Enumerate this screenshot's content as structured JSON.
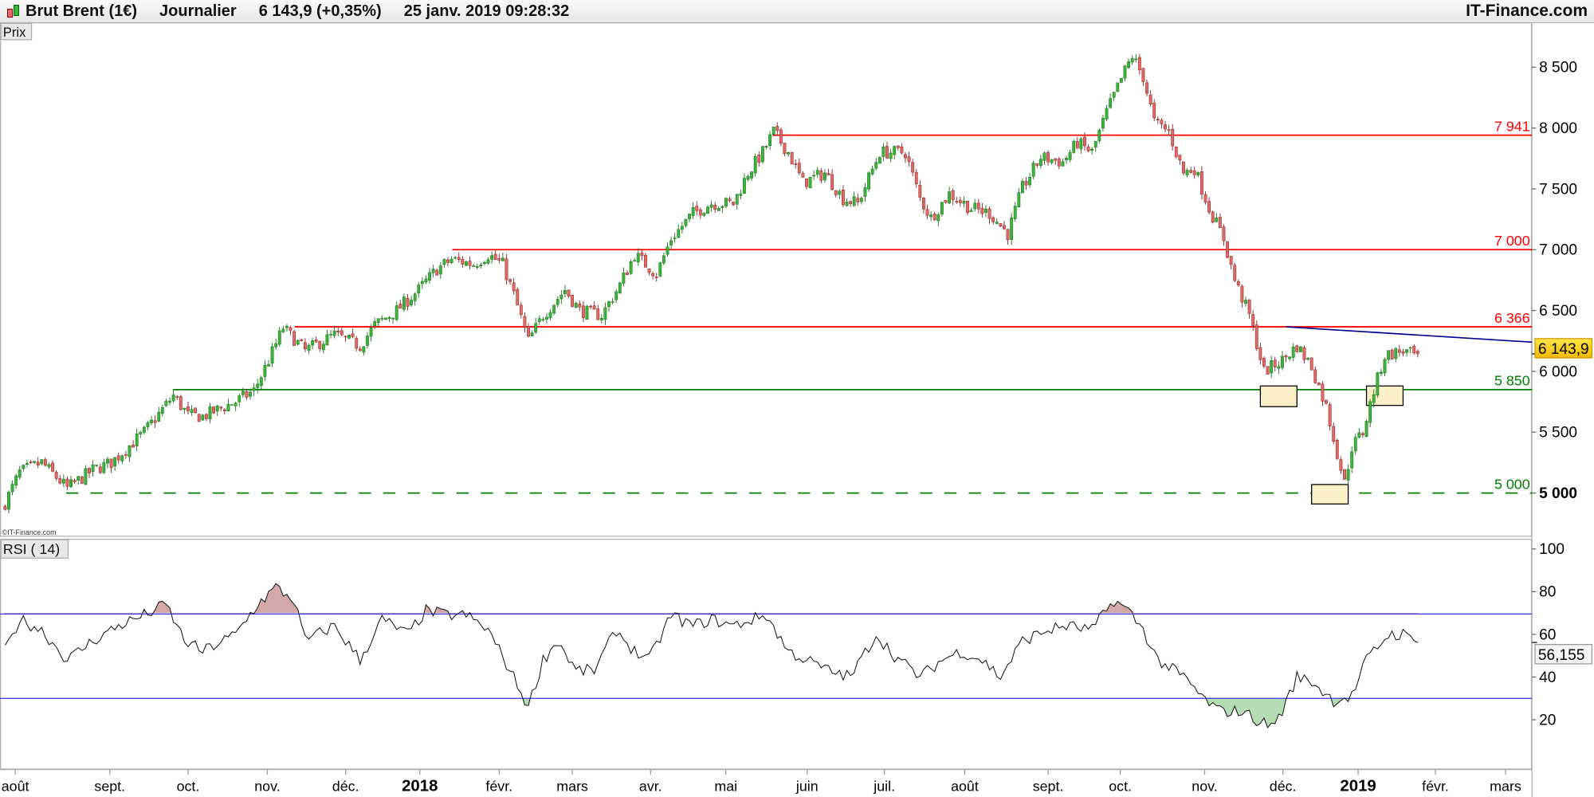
{
  "header": {
    "instrument": "Brut Brent (1€)",
    "period": "Journalier",
    "last_quote": "6 143,9 (+0,35%)",
    "datetime": "25 janv. 2019 09:28:32",
    "brand": "IT-Finance.com"
  },
  "price_panel": {
    "label": "Prix",
    "copyright": "©IT-Finance.com",
    "current_price_label": "6 143,9"
  },
  "rsi_panel": {
    "label": "RSI ( 14)",
    "current_value_label": "56,155"
  },
  "colors": {
    "up": "#3cb43c",
    "down": "#e06a6a",
    "resistance": "#ff0000",
    "support": "#008000",
    "trendline": "#000090",
    "rsi_bands": "#3333dd",
    "overbought_fill": "#d2a8a8",
    "oversold_fill": "#b5dcb5",
    "price_badge": "#ffd700"
  },
  "chart_data": [
    {
      "type": "candlestick",
      "title": "Brut Brent (1€) Journalier",
      "ylabel": "Prix",
      "ylim": [
        4750,
        8800
      ],
      "y_ticks": [
        "5 000",
        "5 500",
        "6 000",
        "6 500",
        "7 000",
        "7 500",
        "8 000",
        "8 500"
      ],
      "y_tick_values": [
        5000,
        5500,
        6000,
        6500,
        7000,
        7500,
        8000,
        8500
      ],
      "x_tick_labels": [
        "août",
        "sept.",
        "oct.",
        "nov.",
        "déc.",
        "2018",
        "févr.",
        "mars",
        "avr.",
        "mai",
        "juin",
        "juil.",
        "août",
        "sept.",
        "oct.",
        "nov.",
        "déc.",
        "2019",
        "févr.",
        "mars"
      ],
      "close_keypoints_by_trading_day": [
        [
          0,
          4920
        ],
        [
          4,
          5170
        ],
        [
          10,
          5250
        ],
        [
          17,
          5040
        ],
        [
          24,
          5190
        ],
        [
          29,
          5250
        ],
        [
          38,
          5500
        ],
        [
          46,
          5800
        ],
        [
          50,
          5640
        ],
        [
          54,
          5630
        ],
        [
          63,
          5750
        ],
        [
          68,
          5840
        ],
        [
          72,
          6090
        ],
        [
          76,
          6360
        ],
        [
          82,
          6170
        ],
        [
          90,
          6300
        ],
        [
          97,
          6210
        ],
        [
          101,
          6380
        ],
        [
          107,
          6500
        ],
        [
          113,
          6670
        ],
        [
          118,
          6840
        ],
        [
          122,
          6920
        ],
        [
          128,
          6880
        ],
        [
          132,
          6960
        ],
        [
          136,
          6880
        ],
        [
          139,
          6630
        ],
        [
          143,
          6250
        ],
        [
          147,
          6460
        ],
        [
          153,
          6670
        ],
        [
          157,
          6500
        ],
        [
          163,
          6460
        ],
        [
          168,
          6710
        ],
        [
          172,
          6960
        ],
        [
          178,
          6800
        ],
        [
          182,
          7090
        ],
        [
          188,
          7300
        ],
        [
          193,
          7380
        ],
        [
          199,
          7380
        ],
        [
          203,
          7630
        ],
        [
          207,
          7800
        ],
        [
          210,
          7970
        ],
        [
          214,
          7800
        ],
        [
          218,
          7550
        ],
        [
          224,
          7630
        ],
        [
          229,
          7420
        ],
        [
          233,
          7380
        ],
        [
          239,
          7800
        ],
        [
          246,
          7800
        ],
        [
          250,
          7420
        ],
        [
          253,
          7260
        ],
        [
          258,
          7460
        ],
        [
          264,
          7340
        ],
        [
          269,
          7300
        ],
        [
          274,
          7130
        ],
        [
          278,
          7510
        ],
        [
          283,
          7760
        ],
        [
          289,
          7720
        ],
        [
          293,
          7880
        ],
        [
          297,
          7800
        ],
        [
          301,
          8130
        ],
        [
          306,
          8470
        ],
        [
          308,
          8590
        ],
        [
          311,
          8420
        ],
        [
          314,
          8050
        ],
        [
          318,
          7970
        ],
        [
          322,
          7630
        ],
        [
          325,
          7670
        ],
        [
          329,
          7340
        ],
        [
          333,
          7090
        ],
        [
          336,
          6750
        ],
        [
          340,
          6460
        ],
        [
          344,
          6000
        ],
        [
          349,
          6090
        ],
        [
          353,
          6210
        ],
        [
          357,
          6040
        ],
        [
          361,
          5710
        ],
        [
          364,
          5330
        ],
        [
          366,
          5080
        ],
        [
          368,
          5380
        ],
        [
          371,
          5500
        ],
        [
          374,
          5840
        ],
        [
          377,
          6130
        ],
        [
          382,
          6170
        ],
        [
          385,
          6130
        ],
        [
          386,
          6143.9
        ]
      ],
      "last_price": 6143.9,
      "levels": [
        {
          "value": 7941,
          "label": "7 941",
          "kind": "resistance"
        },
        {
          "value": 7000,
          "label": "7 000",
          "kind": "resistance"
        },
        {
          "value": 6366,
          "label": "6 366",
          "kind": "resistance"
        },
        {
          "value": 5850,
          "label": "5 850",
          "kind": "support"
        },
        {
          "value": 5000,
          "label": "5 000",
          "kind": "support-dashed"
        }
      ],
      "trendline": {
        "from": [
          350,
          6366
        ],
        "to": [
          403,
          6240
        ]
      },
      "highlight_boxes": [
        {
          "day_range": [
            343,
            353
          ],
          "price_range": [
            5710,
            5880
          ]
        },
        {
          "day_range": [
            357,
            367
          ],
          "price_range": [
            4910,
            5070
          ]
        },
        {
          "day_range": [
            372,
            382
          ],
          "price_range": [
            5720,
            5880
          ]
        }
      ]
    },
    {
      "type": "line",
      "title": "RSI ( 14)",
      "ylim": [
        0,
        105
      ],
      "y_ticks": [
        "20",
        "40",
        "60",
        "80",
        "100"
      ],
      "y_tick_values": [
        20,
        40,
        60,
        80,
        100
      ],
      "bands": [
        30,
        70
      ],
      "keypoints_by_trading_day": [
        [
          0,
          52
        ],
        [
          4,
          67
        ],
        [
          10,
          62
        ],
        [
          17,
          48
        ],
        [
          24,
          57
        ],
        [
          31,
          64
        ],
        [
          38,
          69
        ],
        [
          44,
          74
        ],
        [
          49,
          57
        ],
        [
          54,
          52
        ],
        [
          63,
          60
        ],
        [
          69,
          74
        ],
        [
          74,
          82
        ],
        [
          79,
          76
        ],
        [
          82,
          57
        ],
        [
          90,
          64
        ],
        [
          97,
          48
        ],
        [
          103,
          67
        ],
        [
          110,
          60
        ],
        [
          115,
          71
        ],
        [
          121,
          69
        ],
        [
          126,
          69
        ],
        [
          132,
          62
        ],
        [
          138,
          43
        ],
        [
          143,
          26
        ],
        [
          147,
          48
        ],
        [
          151,
          57
        ],
        [
          156,
          43
        ],
        [
          161,
          43
        ],
        [
          167,
          62
        ],
        [
          172,
          52
        ],
        [
          176,
          48
        ],
        [
          182,
          69
        ],
        [
          188,
          64
        ],
        [
          193,
          67
        ],
        [
          199,
          64
        ],
        [
          208,
          69
        ],
        [
          214,
          52
        ],
        [
          219,
          48
        ],
        [
          225,
          43
        ],
        [
          231,
          40
        ],
        [
          238,
          60
        ],
        [
          243,
          50
        ],
        [
          250,
          40
        ],
        [
          256,
          48
        ],
        [
          261,
          52
        ],
        [
          267,
          48
        ],
        [
          272,
          40
        ],
        [
          278,
          57
        ],
        [
          285,
          62
        ],
        [
          290,
          64
        ],
        [
          297,
          62
        ],
        [
          303,
          76
        ],
        [
          307,
          71
        ],
        [
          311,
          62
        ],
        [
          315,
          48
        ],
        [
          322,
          40
        ],
        [
          328,
          29
        ],
        [
          332,
          24
        ],
        [
          338,
          24
        ],
        [
          343,
          19
        ],
        [
          346,
          17
        ],
        [
          349,
          24
        ],
        [
          353,
          40
        ],
        [
          357,
          38
        ],
        [
          363,
          29
        ],
        [
          368,
          31
        ],
        [
          372,
          48
        ],
        [
          378,
          60
        ],
        [
          382,
          60
        ],
        [
          386,
          56.155
        ]
      ],
      "last_value": 56.155
    }
  ]
}
